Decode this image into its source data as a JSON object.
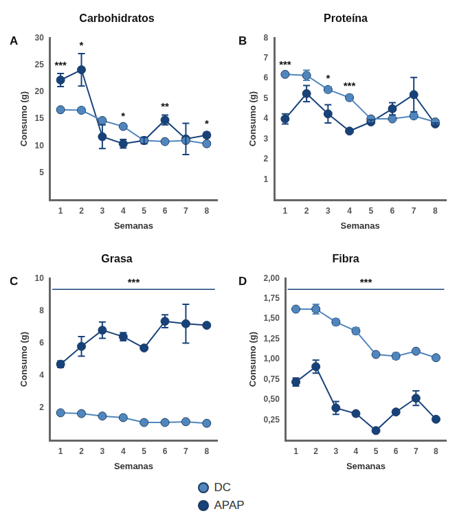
{
  "chart_data": [
    {
      "type": "line",
      "panel": "A",
      "title": "Carbohidratos",
      "x_label": "Semanas",
      "y_label": "Consumo (g)",
      "categories": [
        "1",
        "2",
        "3",
        "4",
        "5",
        "6",
        "7",
        "8"
      ],
      "series": [
        {
          "name": "DC",
          "color": "#4f86bd",
          "marker": "circle",
          "line_style": "solid",
          "values": [
            16.7,
            16.6,
            14.7,
            13.6,
            11.0,
            10.8,
            11.0,
            10.4
          ],
          "errors": [
            0.3,
            0.5,
            0.3,
            0.3,
            0.2,
            0.2,
            0.2,
            0.2
          ]
        },
        {
          "name": "APAP",
          "color": "#17427a",
          "marker": "circle",
          "line_style": "solid",
          "values": [
            22.2,
            24.1,
            11.7,
            10.4,
            11.0,
            14.8,
            11.3,
            12.0
          ],
          "errors": [
            1.2,
            3.0,
            2.2,
            0.8,
            0.6,
            0.9,
            2.9,
            0.5
          ]
        }
      ],
      "ylim": [
        0,
        30
      ],
      "yticks": [
        5,
        10,
        15,
        20,
        25,
        30
      ],
      "grid": false,
      "annotations": [
        {
          "category": "1",
          "text": "***"
        },
        {
          "category": "2",
          "text": "*"
        },
        {
          "category": "4",
          "text": "*"
        },
        {
          "category": "6",
          "text": "**"
        },
        {
          "category": "8",
          "text": "*"
        }
      ]
    },
    {
      "type": "line",
      "panel": "B",
      "title": "Proteína",
      "x_label": "Semanas",
      "y_label": "Consumo (g)",
      "categories": [
        "1",
        "2",
        "3",
        "4",
        "5",
        "6",
        "7",
        "8"
      ],
      "series": [
        {
          "name": "DC",
          "color": "#4f86bd",
          "marker": "circle",
          "line_style": "solid",
          "values": [
            6.2,
            6.15,
            5.45,
            5.05,
            4.0,
            4.0,
            4.15,
            3.85
          ],
          "errors": [
            0.05,
            0.25,
            0.15,
            0.15,
            0.05,
            0.1,
            0.15,
            0.05
          ]
        },
        {
          "name": "APAP",
          "color": "#17427a",
          "marker": "circle",
          "line_style": "solid",
          "values": [
            4.0,
            5.25,
            4.25,
            3.4,
            3.85,
            4.5,
            5.2,
            3.75
          ],
          "errors": [
            0.25,
            0.4,
            0.45,
            0.05,
            0.1,
            0.3,
            0.85,
            0.05
          ]
        }
      ],
      "ylim": [
        0,
        8
      ],
      "yticks": [
        1,
        2,
        3,
        4,
        5,
        6,
        7,
        8
      ],
      "grid": false,
      "annotations": [
        {
          "category": "1",
          "text": "***"
        },
        {
          "category": "3",
          "text": "*"
        },
        {
          "category": "4",
          "text": "***"
        }
      ]
    },
    {
      "type": "line",
      "panel": "C",
      "title": "Grasa",
      "x_label": "Semanas",
      "y_label": "Consumo (g)",
      "categories": [
        "1",
        "2",
        "3",
        "4",
        "5",
        "6",
        "7",
        "8"
      ],
      "series": [
        {
          "name": "DC",
          "color": "#4f86bd",
          "marker": "circle",
          "line_style": "solid",
          "values": [
            1.7,
            1.65,
            1.5,
            1.4,
            1.1,
            1.1,
            1.15,
            1.05
          ],
          "errors": [
            0.05,
            0.05,
            0.05,
            0.05,
            0.05,
            0.05,
            0.05,
            0.05
          ]
        },
        {
          "name": "APAP",
          "color": "#17427a",
          "marker": "circle",
          "line_style": "solid",
          "values": [
            4.7,
            5.8,
            6.8,
            6.4,
            5.7,
            7.35,
            7.2,
            7.1
          ],
          "errors": [
            0.2,
            0.6,
            0.5,
            0.25,
            0.05,
            0.4,
            1.2,
            0.1
          ]
        }
      ],
      "ylim": [
        0,
        10
      ],
      "yticks": [
        2,
        4,
        6,
        8,
        10
      ],
      "grid": false,
      "annotations": [
        {
          "from": "1",
          "to": "8",
          "text": "***"
        }
      ]
    },
    {
      "type": "line",
      "panel": "D",
      "title": "Fibra",
      "x_label": "Semanas",
      "y_label": "Consumo (g)",
      "categories": [
        "1",
        "2",
        "3",
        "4",
        "5",
        "6",
        "7",
        "8"
      ],
      "series": [
        {
          "name": "DC",
          "color": "#4f86bd",
          "marker": "circle",
          "line_style": "solid",
          "values": [
            1.62,
            1.62,
            1.46,
            1.35,
            1.06,
            1.04,
            1.1,
            1.02
          ],
          "errors": [
            0.03,
            0.06,
            0.04,
            0.04,
            0.02,
            0.04,
            0.02,
            0.02
          ]
        },
        {
          "name": "APAP",
          "color": "#17427a",
          "marker": "circle",
          "line_style": "solid",
          "values": [
            0.72,
            0.91,
            0.4,
            0.33,
            0.12,
            0.35,
            0.52,
            0.26
          ],
          "errors": [
            0.05,
            0.08,
            0.08,
            0.02,
            0.01,
            0.02,
            0.09,
            0.02
          ]
        }
      ],
      "ylim": [
        0,
        2
      ],
      "yticks": [
        {
          "value": 0.25,
          "label": "0,25"
        },
        {
          "value": 0.5,
          "label": "0,50"
        },
        {
          "value": 0.75,
          "label": "0,75"
        },
        {
          "value": 1.0,
          "label": "1,00"
        },
        {
          "value": 1.25,
          "label": "1,25"
        },
        {
          "value": 1.5,
          "label": "1,50"
        },
        {
          "value": 1.75,
          "label": "1,75"
        },
        {
          "value": 2.0,
          "label": "2,00"
        }
      ],
      "grid": false,
      "legend": "bottom",
      "annotations": [
        {
          "from": "1",
          "to": "8",
          "text": "***"
        }
      ]
    }
  ]
}
